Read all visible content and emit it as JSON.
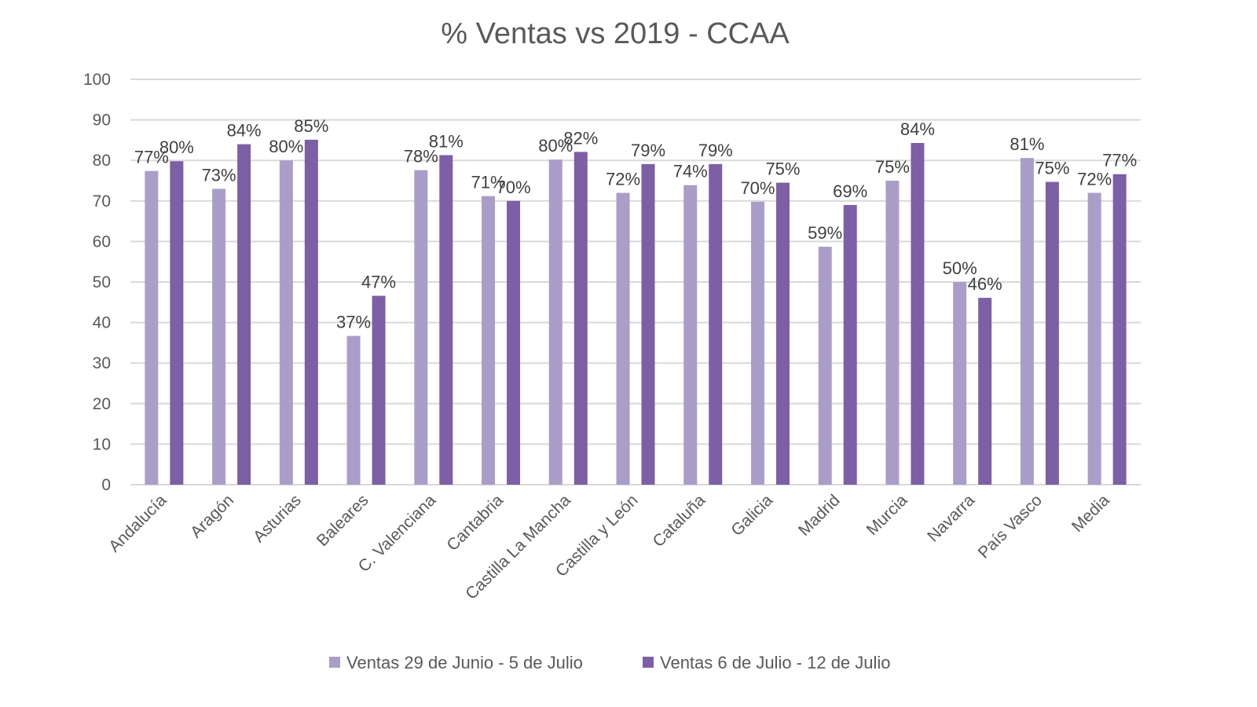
{
  "chart_data": {
    "type": "bar",
    "title": "% Ventas vs 2019 - CCAA",
    "xlabel": "",
    "ylabel": "",
    "ylim": [
      0,
      100
    ],
    "yticks": [
      0,
      10,
      20,
      30,
      40,
      50,
      60,
      70,
      80,
      90,
      100
    ],
    "grid": true,
    "legend_position": "bottom",
    "categories": [
      "Andalucía",
      "Aragón",
      "Asturias",
      "Baleares",
      "C. Valenciana",
      "Cantabria",
      "Castilla La Mancha",
      "Castilla y León",
      "Cataluña",
      "Galicia",
      "Madrid",
      "Murcia",
      "Navarra",
      "País Vasco",
      "Media"
    ],
    "series": [
      {
        "name": "Ventas 29 de Junio - 5 de Julio",
        "color": "#aa9ec8",
        "values": [
          77.4,
          73.0,
          80.0,
          36.7,
          77.6,
          71.2,
          80.2,
          72.0,
          73.9,
          69.8,
          58.7,
          75.0,
          50.0,
          80.6,
          72.0
        ],
        "labels": [
          "77%",
          "73%",
          "80%",
          "37%",
          "78%",
          "71%",
          "80%",
          "72%",
          "74%",
          "70%",
          "59%",
          "75%",
          "50%",
          "81%",
          "72%"
        ]
      },
      {
        "name": "Ventas 6 de Julio - 12 de Julio",
        "color": "#7c5fa4",
        "values": [
          79.8,
          84.0,
          85.1,
          46.6,
          81.3,
          70.0,
          82.1,
          79.1,
          79.1,
          74.5,
          69.0,
          84.3,
          46.1,
          74.7,
          76.6
        ],
        "labels": [
          "80%",
          "84%",
          "85%",
          "47%",
          "81%",
          "70%",
          "82%",
          "79%",
          "79%",
          "75%",
          "69%",
          "84%",
          "46%",
          "75%",
          "77%"
        ]
      }
    ]
  }
}
